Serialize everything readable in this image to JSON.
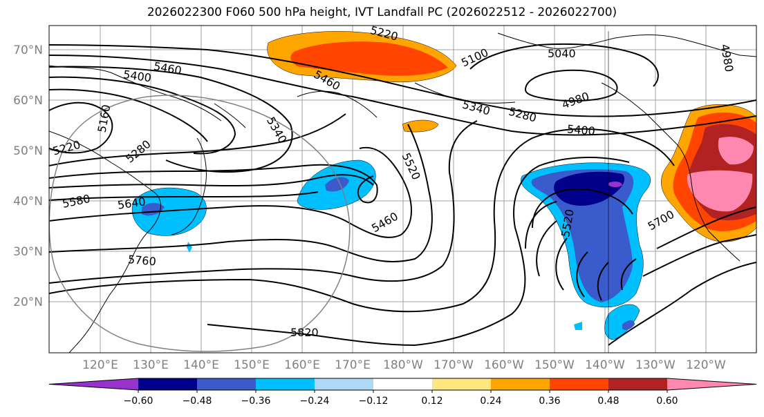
{
  "title": "2026022300 F060 500 hPa height, IVT Landfall PC (2026022512 - 2026022700)",
  "map": {
    "lat_labels": [
      "70°N",
      "60°N",
      "50°N",
      "40°N",
      "30°N",
      "20°N"
    ],
    "lon_labels": [
      "120°E",
      "130°E",
      "140°E",
      "150°E",
      "160°E",
      "170°E",
      "180°W",
      "170°W",
      "160°W",
      "150°W",
      "140°W",
      "130°W",
      "120°W"
    ],
    "contour_labels": [
      "5220",
      "5400",
      "5460",
      "5160",
      "5220",
      "5280",
      "5340",
      "5580",
      "5640",
      "5760",
      "5820",
      "5460",
      "5520",
      "5460",
      "5100",
      "5040",
      "4980",
      "5340",
      "5280",
      "5400",
      "5520",
      "5700",
      "4980"
    ]
  },
  "colorbar": {
    "ticks": [
      "−0.60",
      "−0.48",
      "−0.36",
      "−0.24",
      "−0.12",
      "0.12",
      "0.24",
      "0.36",
      "0.48",
      "0.60"
    ],
    "colors": [
      "#9932CC",
      "#00008B",
      "#3A5BCC",
      "#00BFFF",
      "#ADD8F6",
      "#FFFFFF",
      "#FFE680",
      "#FFA500",
      "#FF4500",
      "#B22222",
      "#FF88B0"
    ]
  }
}
